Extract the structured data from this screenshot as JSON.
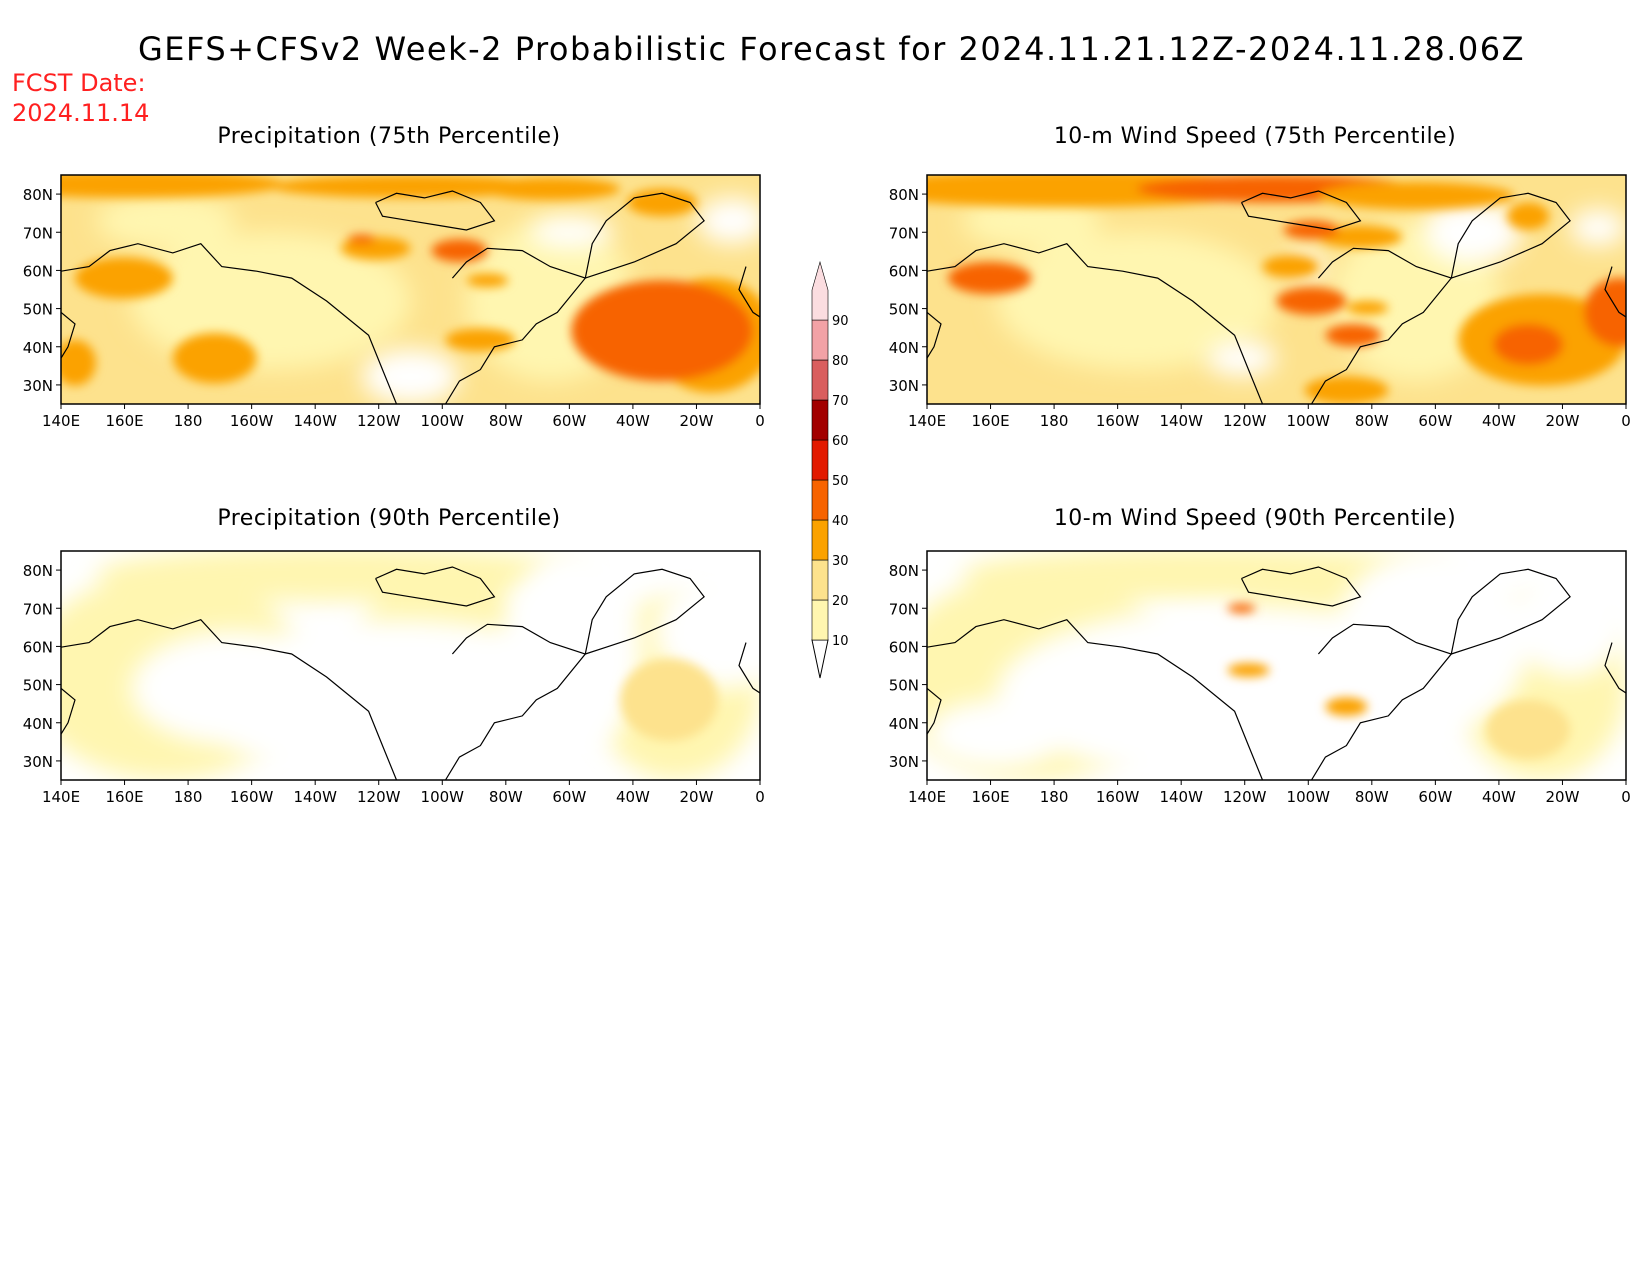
{
  "title": "GEFS+CFSv2 Week-2 Probabilistic Forecast for 2024.11.21.12Z-2024.11.28.06Z",
  "fcst_label": "FCST Date:",
  "fcst_date": "2024.11.14",
  "panels": [
    {
      "title": "Precipitation (75th Percentile)",
      "level": "p75",
      "variable": "precip"
    },
    {
      "title": "10-m Wind Speed (75th Percentile)",
      "level": "p75",
      "variable": "wind"
    },
    {
      "title": "Precipitation (90th Percentile)",
      "level": "p90",
      "variable": "precip"
    },
    {
      "title": "10-m Wind Speed (90th Percentile)",
      "level": "p90",
      "variable": "wind"
    }
  ],
  "lon_ticks": [
    "140E",
    "160E",
    "180",
    "160W",
    "140W",
    "120W",
    "100W",
    "80W",
    "60W",
    "40W",
    "20W",
    "0"
  ],
  "lat_ticks": [
    "80N",
    "70N",
    "60N",
    "50N",
    "40N",
    "30N"
  ],
  "colorbar": {
    "levels": [
      "10",
      "20",
      "30",
      "40",
      "50",
      "60",
      "70",
      "80",
      "90"
    ],
    "colors": [
      "#fff6b0",
      "#fde28d",
      "#fba200",
      "#f76300",
      "#e21a00",
      "#a20000",
      "#d95e5e",
      "#f2a2a6",
      "#fbdde0"
    ]
  }
}
